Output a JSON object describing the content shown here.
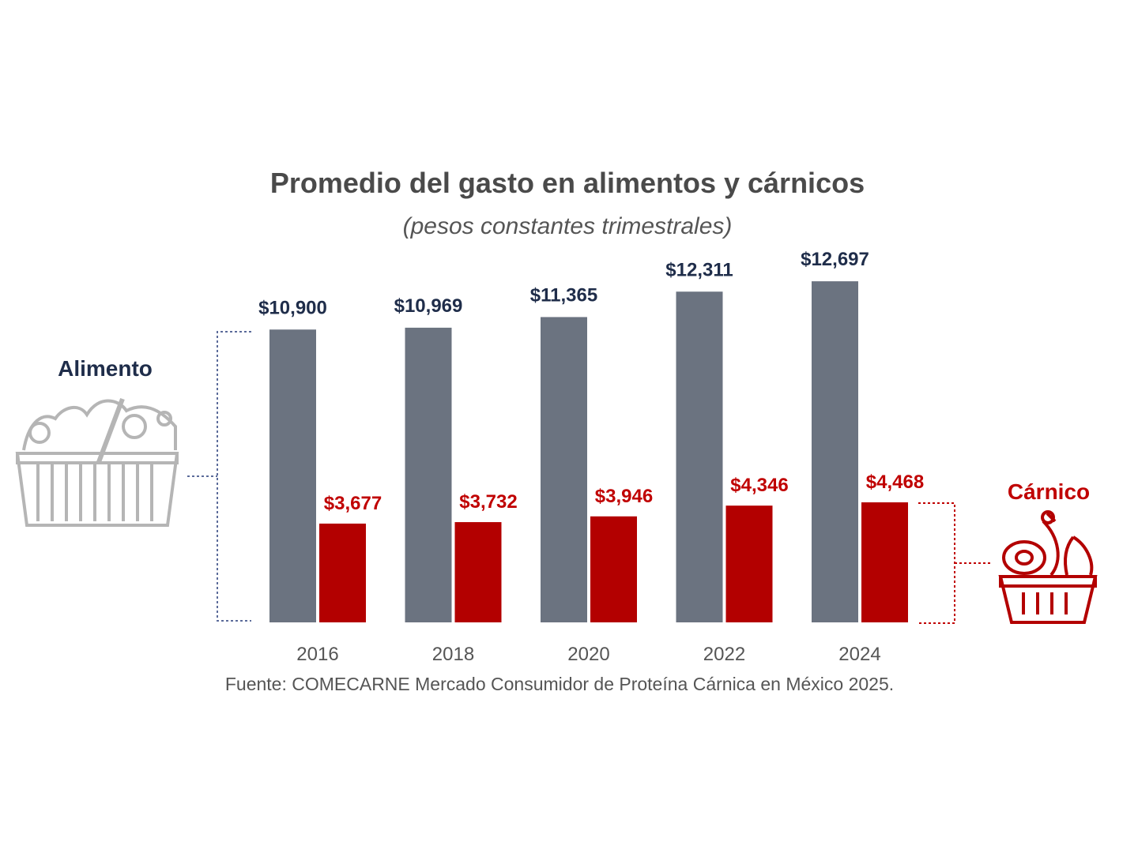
{
  "chart_data": {
    "type": "bar",
    "title": "Promedio del gasto en alimentos y cárnicos",
    "subtitle": "(pesos constantes trimestrales)",
    "categories": [
      "2016",
      "2018",
      "2020",
      "2022",
      "2024"
    ],
    "series": [
      {
        "name": "Alimento",
        "color": "#6b7380",
        "label_color": "#1f2d4a",
        "values": [
          10900,
          10969,
          11365,
          12311,
          12697
        ],
        "labels": [
          "$10,900",
          "$10,969",
          "$11,365",
          "$12,311",
          "$12,697"
        ]
      },
      {
        "name": "Cárnico",
        "color": "#b30000",
        "label_color": "#c00000",
        "values": [
          3677,
          3732,
          3946,
          4346,
          4468
        ],
        "labels": [
          "$3,677",
          "$3,732",
          "$3,946",
          "$4,346",
          "$4,468"
        ]
      }
    ],
    "ylim": [
      0,
      13000
    ],
    "grid": false,
    "source": "Fuente: COMECARNE Mercado Consumidor de Proteína Cárnica en México 2025."
  }
}
